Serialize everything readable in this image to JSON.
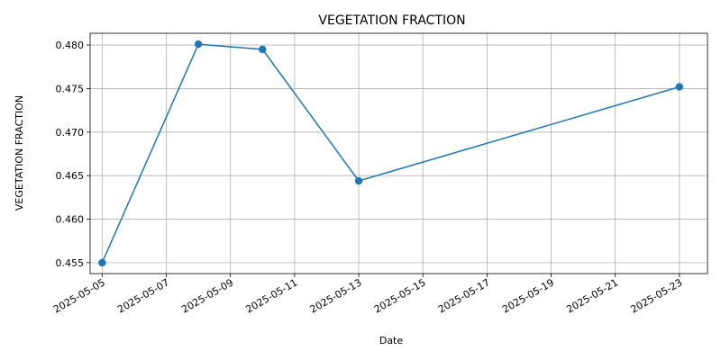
{
  "chart_data": {
    "type": "line",
    "title": "VEGETATION FRACTION",
    "xlabel": "Date",
    "ylabel": "VEGETATION FRACTION",
    "grid": true,
    "x": [
      "2025-05-05",
      "2025-05-08",
      "2025-05-10",
      "2025-05-13",
      "2025-05-23"
    ],
    "series": [
      {
        "values": [
          0.455,
          0.4801,
          0.4795,
          0.4644,
          0.4752
        ],
        "color": "#1f77b4",
        "marker": "circle"
      }
    ],
    "xlim": [
      "2025-05-04T15:00",
      "2025-05-23T21:00"
    ],
    "ylim": [
      0.45375,
      0.48135
    ],
    "xticks": [
      "2025-05-05",
      "2025-05-07",
      "2025-05-09",
      "2025-05-11",
      "2025-05-13",
      "2025-05-15",
      "2025-05-17",
      "2025-05-19",
      "2025-05-21",
      "2025-05-23"
    ],
    "yticks": [
      "0.455",
      "0.460",
      "0.465",
      "0.470",
      "0.475",
      "0.480"
    ]
  }
}
